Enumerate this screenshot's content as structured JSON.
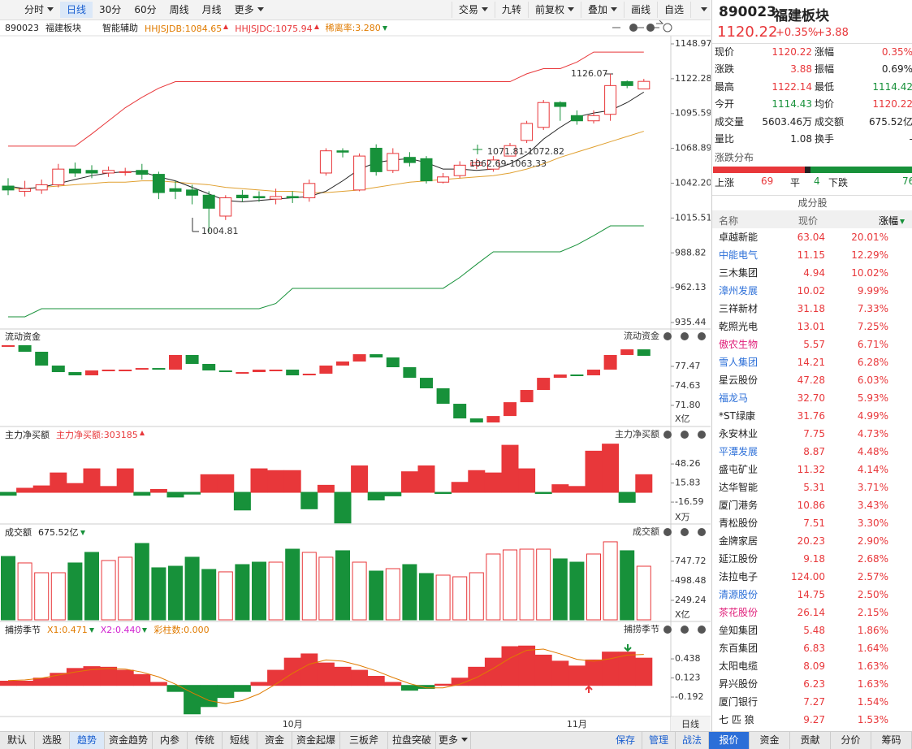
{
  "toolbar": {
    "left": [
      {
        "text": "分时",
        "menu": true
      },
      {
        "text": "日线",
        "active": true
      },
      {
        "text": "30分"
      },
      {
        "text": "60分"
      },
      {
        "text": "周线"
      },
      {
        "text": "月线"
      },
      {
        "text": "更多",
        "menu": true
      }
    ],
    "right": [
      {
        "text": "交易",
        "menu": true
      },
      {
        "text": "九转"
      },
      {
        "text": "前复权",
        "menu": true
      },
      {
        "text": "叠加",
        "menu": true
      },
      {
        "text": "画线"
      },
      {
        "text": "自选"
      }
    ]
  },
  "chart_data": [
    {
      "type": "candlestick",
      "code": "890023",
      "name": "福建板块",
      "assist": "智能辅助",
      "indicators": [
        {
          "text": "HHJSJDB:1084.65",
          "color": "#e07b00",
          "arrow": "up"
        },
        {
          "text": "HHJSJDC:1075.94",
          "color": "#e8373a",
          "arrow": "up"
        },
        {
          "text": "稀离率:3.280",
          "color": "#e07b00",
          "arrow": "down"
        }
      ],
      "categories": [
        null,
        null,
        null,
        null,
        null,
        null,
        null,
        null,
        null,
        null,
        null,
        null,
        null,
        null,
        null,
        null,
        null,
        "10月",
        null,
        null,
        null,
        null,
        null,
        null,
        null,
        null,
        null,
        null,
        null,
        null,
        null,
        null,
        null,
        null,
        "11月",
        null,
        null,
        null,
        null
      ],
      "open": [
        1040,
        1036,
        1037,
        1041,
        1053,
        1052,
        1050,
        1051,
        1052,
        1049,
        1038,
        1037,
        1033,
        1017,
        1033,
        1032,
        1030,
        1032,
        1031,
        1050,
        1067,
        1037,
        1069,
        1052,
        1062,
        1061,
        1043,
        1048,
        1056,
        1053,
        1063,
        1075,
        1085,
        1104,
        1094,
        1090,
        1095,
        1120,
        1114.43
      ],
      "high": [
        1046,
        1044,
        1045,
        1057,
        1058,
        1056,
        1055,
        1054,
        1057,
        1051,
        1044,
        1041,
        1036,
        1033,
        1037,
        1036,
        1038,
        1036,
        1045,
        1069,
        1069,
        1065,
        1072,
        1069,
        1066,
        1063,
        1050,
        1059,
        1061,
        1063,
        1073,
        1090,
        1106,
        1105,
        1098,
        1098,
        1126.07,
        1121,
        1122.14
      ],
      "low": [
        1033,
        1032,
        1034,
        1039,
        1047,
        1046,
        1047,
        1048,
        1045,
        1030,
        1030,
        1026,
        1004.81,
        1014,
        1028,
        1028,
        1026,
        1027,
        1028,
        1048,
        1062,
        1036,
        1048,
        1050,
        1055,
        1042,
        1042,
        1046,
        1053,
        1051,
        1063,
        1073,
        1083,
        1090,
        1087,
        1088,
        1090,
        1115,
        1114.42
      ],
      "close": [
        1037,
        1038,
        1041,
        1053,
        1050,
        1050,
        1052,
        1051,
        1049,
        1035,
        1036,
        1033,
        1023,
        1031,
        1031,
        1031,
        1032,
        1031,
        1042,
        1067,
        1066,
        1063,
        1051,
        1065,
        1058,
        1044,
        1047,
        1056,
        1058,
        1060,
        1071,
        1088,
        1104,
        1101,
        1090,
        1094,
        1117,
        1117,
        1120.22
      ],
      "lines": [
        {
          "color": "#e8373a",
          "values": [
            1070.6,
            1070.6,
            1070.6,
            1070.6,
            1070.6,
            1080,
            1090,
            1100,
            1108,
            1115,
            1120,
            1120,
            1120,
            1120,
            1120,
            1120,
            1120,
            1120,
            1120,
            1120,
            1120,
            1120,
            1120,
            1120,
            1120,
            1120,
            1120,
            1120,
            1120,
            1120,
            1120,
            1126,
            1130,
            1130,
            1135,
            1142.7,
            1142.7,
            1142.7,
            1142.7
          ]
        },
        {
          "color": "#17913a",
          "values": [
            939.8,
            939.8,
            946,
            946,
            946,
            946,
            946,
            946,
            946,
            946,
            946,
            946,
            946,
            946,
            946,
            946,
            950,
            961.6,
            961.6,
            961.6,
            961.6,
            961.6,
            961.6,
            961.6,
            961.6,
            961.6,
            961.6,
            970,
            980,
            989.6,
            989.6,
            989.6,
            989.6,
            989.6,
            995,
            1002,
            1009.5,
            1009.5,
            1009.5
          ]
        },
        {
          "color": "#e0a030",
          "values": [
            1038,
            1038,
            1039,
            1040,
            1041,
            1042,
            1043,
            1043,
            1044,
            1044,
            1043,
            1042,
            1041,
            1039,
            1038,
            1037,
            1036,
            1036,
            1035,
            1035,
            1036,
            1037,
            1039,
            1041,
            1043,
            1044,
            1045,
            1046,
            1047,
            1048,
            1050,
            1053,
            1057,
            1062,
            1066,
            1070,
            1074,
            1078,
            1082
          ]
        },
        {
          "color": "#222222",
          "values": [
            1040,
            1038,
            1039,
            1042,
            1045,
            1048,
            1050,
            1051,
            1051,
            1047,
            1044,
            1039,
            1034,
            1029,
            1028,
            1029,
            1030,
            1031,
            1032,
            1036,
            1044,
            1053,
            1058,
            1060,
            1061,
            1058,
            1053,
            1053,
            1052,
            1053,
            1057,
            1064,
            1076,
            1085,
            1093,
            1096,
            1098,
            1104,
            1112
          ]
        }
      ],
      "annotations": [
        "1126.07",
        "1071.81-1072.82",
        "1062.69-1063.33",
        "1004.81"
      ],
      "ylim": [
        935.44,
        1148.97
      ],
      "yticks": [
        1148.97,
        1122.28,
        1095.59,
        1068.89,
        {
          "value": 1042.2,
          "label": "1042.20"
        },
        1015.51,
        988.82,
        962.13,
        935.44
      ],
      "period": "日线"
    },
    {
      "type": "waterfall",
      "title": "流动资金",
      "title_right": "流动资金",
      "unit": "X亿",
      "values": [
        80.55,
        79.6,
        77.59,
        76.64,
        76.17,
        76.88,
        77.0,
        77.0,
        77.23,
        77.0,
        79.13,
        77.83,
        76.88,
        76.64,
        76.64,
        77.0,
        77.0,
        76.17,
        76.41,
        77.59,
        78.18,
        79.24,
        78.77,
        77.35,
        75.81,
        74.28,
        72.03,
        69.9,
        69.31,
        70.25,
        72.26,
        74.04,
        75.81,
        76.29,
        76.17,
        77.0,
        79.13,
        79.95,
        79.01
      ],
      "ylim": [
        69.08,
        80.9
      ],
      "yticks": [
        77.47,
        74.63,
        {
          "value": 71.8,
          "label": "71.80"
        }
      ]
    },
    {
      "type": "bar",
      "title": "主力净买额",
      "title_right": "主力净买额",
      "color_by": "sign",
      "unit": "X万",
      "indicators": [
        {
          "text": "主力净买额:303185",
          "color": "#e8373a",
          "arrow": "up"
        }
      ],
      "values": [
        -5,
        7,
        11,
        33,
        15,
        40,
        10,
        40,
        -5,
        5,
        -8,
        -3,
        30,
        30,
        -30,
        40,
        37,
        37,
        -28,
        12,
        -52,
        45,
        -13,
        -6,
        35,
        45,
        -2,
        17,
        37,
        33,
        80,
        40,
        -2,
        13,
        10,
        70,
        82,
        -17,
        30
      ],
      "ylim": [
        -51,
        105
      ],
      "yticks": [
        48.26,
        15.83,
        -16.59
      ]
    },
    {
      "type": "bar",
      "title": "成交额",
      "title_right": "成交额",
      "color_by": "candle",
      "unit": "X亿",
      "indicators": [
        {
          "text": "675.52亿",
          "color": "#222222",
          "arrow": "down"
        }
      ],
      "values": [
        810,
        727,
        602,
        602,
        727,
        862,
        758,
        800,
        976,
        665,
        685,
        800,
        644,
        613,
        706,
        737,
        737,
        903,
        862,
        800,
        883,
        737,
        623,
        654,
        706,
        592,
        571,
        550,
        602,
        841,
        893,
        903,
        903,
        779,
        737,
        841,
        997,
        883,
        685
      ],
      "ylim": [
        0,
        1038
      ],
      "yticks": [
        747.72,
        498.48,
        249.24
      ]
    },
    {
      "type": "bar",
      "title": "捕捞季节",
      "title_right": "捕捞季节",
      "color_by": "sign",
      "indicators": [
        {
          "text": "X1:0.471",
          "color": "#e07b00",
          "arrow": "down"
        },
        {
          "text": "X2:0.440",
          "color": "#d020d0",
          "arrow": "down"
        },
        {
          "text": "彩柱数:0.000",
          "color": "#e07b00"
        }
      ],
      "values": [
        0.07,
        0.07,
        0.12,
        0.2,
        0.28,
        0.31,
        0.3,
        0.25,
        0.18,
        0.05,
        -0.1,
        -0.47,
        -0.35,
        -0.2,
        -0.1,
        0.05,
        0.25,
        0.45,
        0.52,
        0.37,
        0.3,
        0.25,
        0.15,
        0.05,
        -0.08,
        -0.05,
        0.02,
        0.12,
        0.3,
        0.45,
        0.64,
        0.65,
        0.5,
        0.4,
        0.32,
        0.42,
        0.55,
        0.55,
        0.45
      ],
      "lines": [
        {
          "color": "#e07b00",
          "values": [
            0.08,
            0.09,
            0.12,
            0.17,
            0.22,
            0.26,
            0.28,
            0.27,
            0.22,
            0.14,
            0.02,
            -0.12,
            -0.25,
            -0.3,
            -0.25,
            -0.14,
            0.02,
            0.2,
            0.35,
            0.42,
            0.4,
            0.33,
            0.24,
            0.13,
            0.03,
            -0.04,
            -0.04,
            0.02,
            0.13,
            0.28,
            0.45,
            0.58,
            0.6,
            0.52,
            0.43,
            0.4,
            0.44,
            0.5,
            0.51
          ]
        }
      ],
      "ylim": [
        -0.5,
        0.7
      ],
      "yticks": [
        0.438,
        0.123,
        -0.192
      ]
    }
  ],
  "quote": {
    "code": "890023",
    "name": "福建板块",
    "price": "1120.22",
    "change_pct": "+0.35%",
    "change": "+3.88",
    "fields": [
      [
        {
          "label": "现价",
          "value": "1120.22",
          "color": "up"
        },
        {
          "label": "涨幅",
          "value": "0.35%",
          "color": "up"
        }
      ],
      [
        {
          "label": "涨跌",
          "value": "3.88",
          "color": "up"
        },
        {
          "label": "振幅",
          "value": "0.69%"
        }
      ],
      [
        {
          "label": "最高",
          "value": "1122.14",
          "color": "up"
        },
        {
          "label": "最低",
          "value": "1114.42",
          "color": "down"
        }
      ],
      [
        {
          "label": "今开",
          "value": "1114.43",
          "color": "down"
        },
        {
          "label": "均价",
          "value": "1120.22",
          "color": "up"
        }
      ],
      [
        {
          "label": "成交量",
          "value": "5603.46万"
        },
        {
          "label": "成交额",
          "value": "675.52亿"
        }
      ],
      [
        {
          "label": "量比",
          "value": "1.08"
        },
        {
          "label": "换手",
          "value": "-"
        }
      ]
    ]
  },
  "distribution": {
    "title": "涨跌分布",
    "up_label": "上涨",
    "up": 69,
    "flat_label": "平",
    "flat": 4,
    "down_label": "下跌",
    "down": 76
  },
  "constituents": {
    "title": "成分股",
    "headers": [
      "名称",
      "现价",
      "涨幅"
    ],
    "rows": [
      {
        "name": "卓越新能",
        "price": "63.04",
        "pct": "20.01%"
      },
      {
        "name": "中能电气",
        "price": "11.15",
        "pct": "12.29%",
        "color": "blue"
      },
      {
        "name": "三木集团",
        "price": "4.94",
        "pct": "10.02%"
      },
      {
        "name": "漳州发展",
        "price": "10.02",
        "pct": "9.99%",
        "color": "blue"
      },
      {
        "name": "三祥新材",
        "price": "31.18",
        "pct": "7.33%"
      },
      {
        "name": "乾照光电",
        "price": "13.01",
        "pct": "7.25%"
      },
      {
        "name": "傲农生物",
        "price": "5.57",
        "pct": "6.71%",
        "color": "pink"
      },
      {
        "name": "雪人集团",
        "price": "14.21",
        "pct": "6.28%",
        "color": "blue"
      },
      {
        "name": "星云股份",
        "price": "47.28",
        "pct": "6.03%"
      },
      {
        "name": "福龙马",
        "price": "32.70",
        "pct": "5.93%",
        "color": "blue"
      },
      {
        "name": "*ST绿康",
        "price": "31.76",
        "pct": "4.99%"
      },
      {
        "name": "永安林业",
        "price": "7.75",
        "pct": "4.73%"
      },
      {
        "name": "平潭发展",
        "price": "8.87",
        "pct": "4.48%",
        "color": "blue"
      },
      {
        "name": "盛屯矿业",
        "price": "11.32",
        "pct": "4.14%"
      },
      {
        "name": "达华智能",
        "price": "5.31",
        "pct": "3.71%"
      },
      {
        "name": "厦门港务",
        "price": "10.86",
        "pct": "3.43%"
      },
      {
        "name": "青松股份",
        "price": "7.51",
        "pct": "3.30%"
      },
      {
        "name": "金牌家居",
        "price": "20.23",
        "pct": "2.90%"
      },
      {
        "name": "延江股份",
        "price": "9.18",
        "pct": "2.68%"
      },
      {
        "name": "法拉电子",
        "price": "124.00",
        "pct": "2.57%"
      },
      {
        "name": "清源股份",
        "price": "14.75",
        "pct": "2.50%",
        "color": "blue"
      },
      {
        "name": "茶花股份",
        "price": "26.14",
        "pct": "2.15%",
        "color": "pink"
      },
      {
        "name": "垒知集团",
        "price": "5.48",
        "pct": "1.86%"
      },
      {
        "name": "东百集团",
        "price": "6.83",
        "pct": "1.64%"
      },
      {
        "name": "太阳电缆",
        "price": "8.09",
        "pct": "1.63%"
      },
      {
        "name": "昇兴股份",
        "price": "6.23",
        "pct": "1.63%"
      },
      {
        "name": "厦门银行",
        "price": "7.27",
        "pct": "1.54%"
      },
      {
        "name": "七 匹 狼",
        "price": "9.27",
        "pct": "1.53%"
      }
    ]
  },
  "bottom_tabs": {
    "left": [
      {
        "text": "默认"
      },
      {
        "text": "选股"
      },
      {
        "text": "趋势",
        "active": true
      },
      {
        "text": "资金趋势"
      },
      {
        "text": "内参"
      },
      {
        "text": "传统"
      },
      {
        "text": "短线"
      },
      {
        "text": "资金"
      },
      {
        "text": "资金起爆"
      },
      {
        "text": "三板斧"
      },
      {
        "text": "拉盘突破"
      },
      {
        "text": "更多",
        "menu": true
      }
    ],
    "actions": [
      {
        "text": "保存"
      },
      {
        "text": "管理"
      },
      {
        "text": "战法"
      }
    ],
    "right": [
      {
        "text": "报价",
        "active": true
      },
      {
        "text": "资金"
      },
      {
        "text": "贡献"
      },
      {
        "text": "分价"
      },
      {
        "text": "筹码"
      }
    ]
  }
}
